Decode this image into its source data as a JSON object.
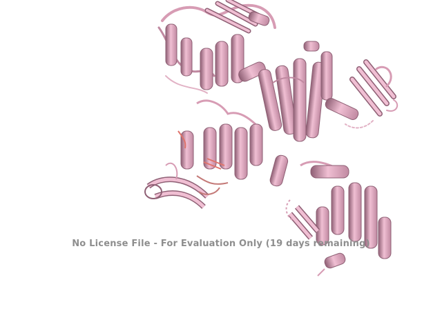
{
  "watermark": {
    "text": "No License File - For Evaluation Only (19 days remaining)"
  },
  "render": {
    "background": "#ffffff",
    "colors": {
      "ribbon_light": "#f0bfd3",
      "ribbon_mid": "#d79cb4",
      "ribbon_dark": "#8e5f74",
      "ligand": "#e0736b",
      "watermark": "#8e8e8e"
    },
    "subject": "protein-cartoon-ribbon"
  }
}
